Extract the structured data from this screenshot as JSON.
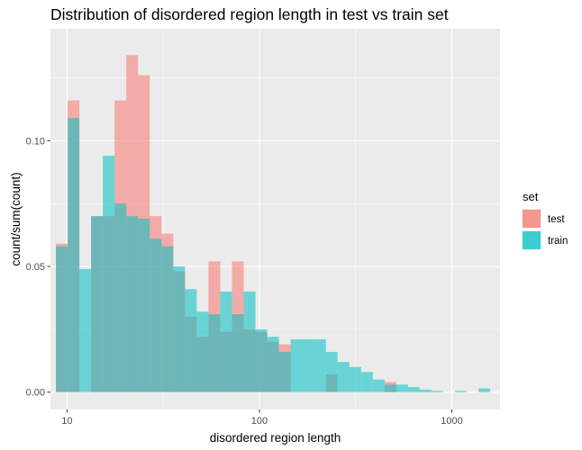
{
  "chart_data": {
    "type": "bar",
    "subtype": "overlaid-histogram",
    "title": "Distribution of disordered region length in test vs train set",
    "xlabel": "disordered region length",
    "ylabel": "count/sum(count)",
    "x_scale": "log10",
    "xlim": [
      8.2,
      1780
    ],
    "ylim": [
      -0.0069,
      0.1445
    ],
    "x_ticks": [
      10,
      100,
      1000
    ],
    "x_tick_labels": [
      "10",
      "100",
      "1000"
    ],
    "y_ticks": [
      0,
      0.05,
      0.1
    ],
    "y_tick_labels": [
      "0.00",
      "0.05",
      "0.10"
    ],
    "grid": true,
    "legend": {
      "title": "set",
      "position": "right",
      "items": [
        {
          "label": "test",
          "color": "#F8766D"
        },
        {
          "label": "train",
          "color": "#00BFC4"
        }
      ]
    },
    "bin_edges": [
      8.75,
      10.07,
      11.59,
      13.34,
      15.35,
      17.67,
      20.33,
      23.4,
      26.93,
      30.99,
      35.66,
      41.04,
      47.23,
      54.35,
      62.55,
      71.98,
      82.84,
      95.33,
      109.71,
      126.26,
      145.3,
      167.22,
      192.44,
      221.46,
      254.86,
      293.3,
      337.53,
      388.43,
      447.01,
      514.43,
      592.01,
      681.29,
      784.04,
      902.29,
      1038.37,
      1194.97,
      1375.19,
      1582.59
    ],
    "series": [
      {
        "name": "test",
        "color": "#F8766D",
        "values": [
          0.059,
          0.116,
          0.0,
          0.07,
          0.07,
          0.116,
          0.134,
          0.126,
          0.07,
          0.063,
          0.048,
          0.03,
          0.022,
          0.052,
          0.024,
          0.052,
          0.025,
          0.024,
          0.02,
          0.019,
          0.0,
          0.0,
          0.0,
          0.007,
          0.0,
          0.0,
          0.0,
          0.0,
          0.004,
          0.0,
          0.0,
          0.0,
          0.0,
          0.0,
          0.0,
          0.0,
          0.0
        ]
      },
      {
        "name": "train",
        "color": "#00BFC4",
        "values": [
          0.058,
          0.109,
          0.049,
          0.07,
          0.094,
          0.075,
          0.07,
          0.069,
          0.061,
          0.058,
          0.05,
          0.041,
          0.032,
          0.031,
          0.04,
          0.031,
          0.04,
          0.025,
          0.022,
          0.016,
          0.021,
          0.021,
          0.021,
          0.016,
          0.012,
          0.01,
          0.008,
          0.005,
          0.003,
          0.003,
          0.002,
          0.001,
          0.0005,
          0.0,
          0.0005,
          0.0,
          0.0015
        ]
      }
    ]
  }
}
